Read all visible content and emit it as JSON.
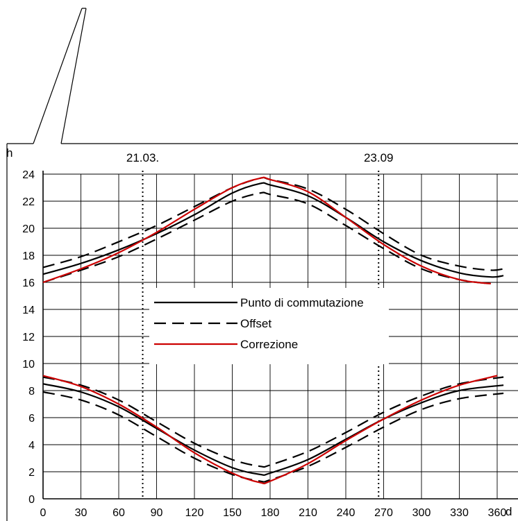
{
  "chart_data": {
    "type": "line",
    "xlabel": "d",
    "ylabel": "h",
    "xlim": [
      0,
      370
    ],
    "ylim": [
      0,
      24
    ],
    "x_ticks": [
      0,
      30,
      60,
      90,
      120,
      150,
      180,
      210,
      240,
      270,
      300,
      330,
      360
    ],
    "y_ticks": [
      0,
      2,
      4,
      6,
      8,
      10,
      12,
      14,
      16,
      18,
      20,
      22,
      24
    ],
    "grid": true,
    "markers": [
      {
        "x": 79,
        "label": "21.03."
      },
      {
        "x": 266,
        "label": "23.09"
      }
    ],
    "legend": {
      "placement": "center-left",
      "entries": [
        {
          "name": "Punto di commutazione",
          "style": "solid",
          "color": "#000000"
        },
        {
          "name": "Offset",
          "style": "dashed",
          "color": "#000000"
        },
        {
          "name": "Correzione",
          "style": "solid",
          "color": "#cc0000"
        }
      ]
    },
    "series": [
      {
        "name": "Punto di commutazione",
        "group": "upper",
        "color": "#000000",
        "dash": "solid",
        "x": [
          0,
          30,
          60,
          90,
          120,
          150,
          172,
          180,
          210,
          240,
          270,
          300,
          330,
          355,
          365
        ],
        "y": [
          16.6,
          17.4,
          18.4,
          19.6,
          21.0,
          22.6,
          23.3,
          23.2,
          22.4,
          20.8,
          19.0,
          17.6,
          16.7,
          16.4,
          16.5
        ]
      },
      {
        "name": "Offset",
        "group": "upper",
        "color": "#000000",
        "dash": "dashed",
        "x": [
          0,
          30,
          60,
          90,
          120,
          150,
          172,
          180,
          210,
          240,
          270,
          300,
          330,
          355,
          365
        ],
        "y": [
          17.1,
          17.9,
          19.0,
          20.2,
          21.6,
          23.0,
          23.7,
          23.6,
          22.9,
          21.4,
          19.6,
          18.0,
          17.2,
          16.9,
          17.0
        ]
      },
      {
        "name": "Offset",
        "group": "upper",
        "color": "#000000",
        "dash": "dashed",
        "x": [
          0,
          30,
          60,
          90,
          120,
          150,
          172,
          180,
          210,
          240,
          270,
          300,
          330,
          355
        ],
        "y": [
          16.0,
          16.9,
          17.9,
          19.2,
          20.6,
          22.0,
          22.6,
          22.5,
          21.8,
          20.2,
          18.5,
          17.0,
          16.2,
          15.9
        ]
      },
      {
        "name": "Correzione",
        "group": "upper",
        "color": "#cc0000",
        "dash": "solid",
        "x": [
          0,
          30,
          60,
          90,
          120,
          150,
          172,
          180,
          210,
          240,
          270,
          300,
          330,
          355
        ],
        "y": [
          16.0,
          17.0,
          18.2,
          19.7,
          21.4,
          23.0,
          23.7,
          23.6,
          22.7,
          20.8,
          18.8,
          17.2,
          16.2,
          15.9
        ]
      },
      {
        "name": "Punto di commutazione",
        "group": "lower",
        "color": "#000000",
        "dash": "solid",
        "x": [
          0,
          30,
          60,
          90,
          120,
          150,
          172,
          180,
          210,
          240,
          270,
          300,
          330,
          365
        ],
        "y": [
          8.5,
          7.9,
          6.8,
          5.2,
          3.6,
          2.3,
          1.8,
          1.9,
          2.9,
          4.4,
          5.9,
          7.1,
          8.0,
          8.4
        ]
      },
      {
        "name": "Offset",
        "group": "lower",
        "color": "#000000",
        "dash": "dashed",
        "x": [
          0,
          30,
          60,
          90,
          120,
          150,
          172,
          180,
          210,
          240,
          270,
          300,
          330,
          365
        ],
        "y": [
          9.0,
          8.4,
          7.3,
          5.7,
          4.1,
          2.9,
          2.4,
          2.5,
          3.5,
          4.9,
          6.4,
          7.6,
          8.5,
          9.0
        ]
      },
      {
        "name": "Offset",
        "group": "lower",
        "color": "#000000",
        "dash": "dashed",
        "x": [
          0,
          30,
          60,
          90,
          120,
          150,
          172,
          180,
          210,
          240,
          270,
          300,
          330,
          365
        ],
        "y": [
          7.9,
          7.3,
          6.2,
          4.6,
          3.0,
          1.8,
          1.3,
          1.4,
          2.4,
          3.8,
          5.3,
          6.6,
          7.4,
          7.8
        ]
      },
      {
        "name": "Correzione",
        "group": "lower",
        "color": "#cc0000",
        "dash": "solid",
        "x": [
          0,
          30,
          60,
          90,
          120,
          150,
          172,
          180,
          210,
          240,
          270,
          300,
          330,
          360
        ],
        "y": [
          9.1,
          8.3,
          7.0,
          5.3,
          3.4,
          1.9,
          1.2,
          1.3,
          2.6,
          4.3,
          5.9,
          7.3,
          8.4,
          9.1
        ]
      }
    ]
  }
}
